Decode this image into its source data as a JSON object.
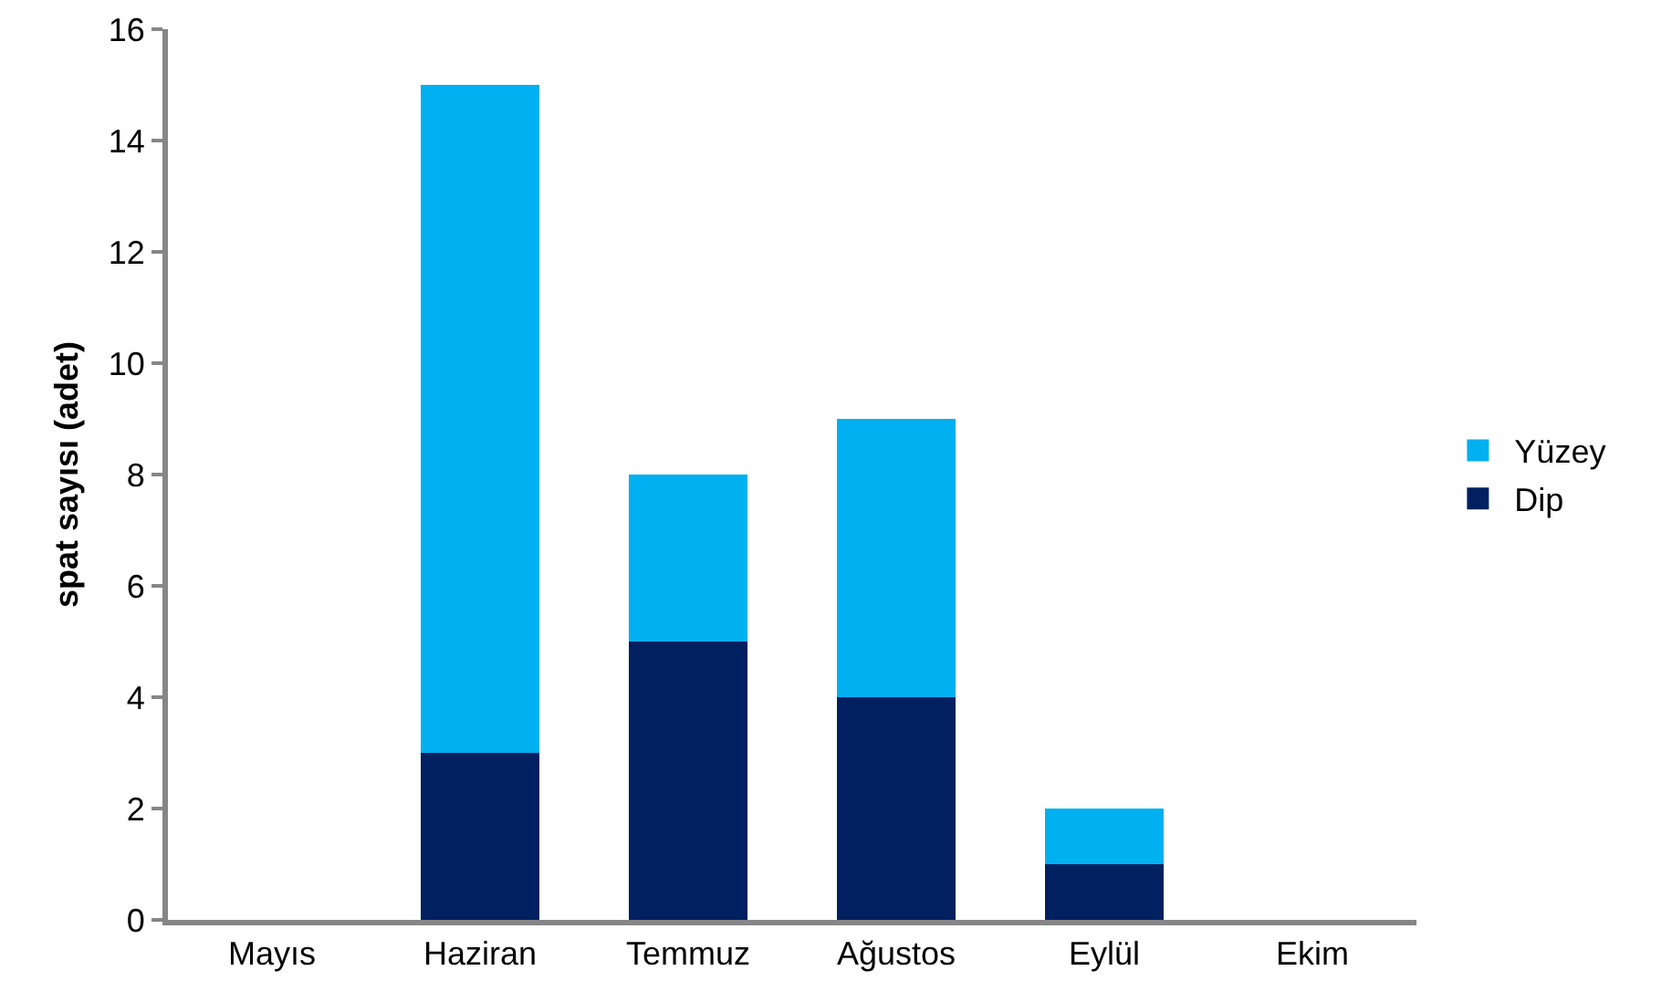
{
  "chart_data": {
    "type": "bar",
    "stacked": true,
    "ylabel": "spat sayısı (adet)",
    "categories": [
      "Mayıs",
      "Haziran",
      "Temmuz",
      "Ağustos",
      "Eylül",
      "Ekim"
    ],
    "series": [
      {
        "name": "Dip",
        "color": "#002060",
        "values": [
          0,
          3,
          5,
          4,
          1,
          0
        ]
      },
      {
        "name": "Yüzey",
        "color": "#00b0f0",
        "values": [
          0,
          12,
          3,
          5,
          1,
          0
        ]
      }
    ],
    "ylim": [
      0,
      16
    ],
    "yticks": [
      0,
      2,
      4,
      6,
      8,
      10,
      12,
      14,
      16
    ],
    "grid": false,
    "legend": "right"
  }
}
